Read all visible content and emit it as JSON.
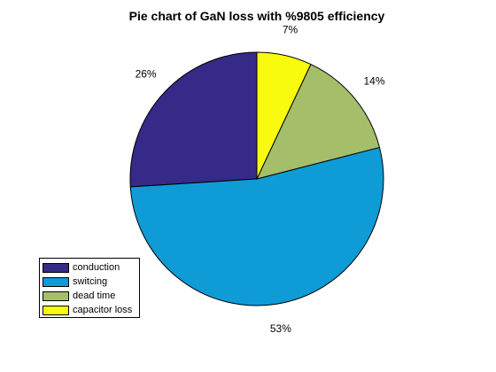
{
  "chart_data": {
    "type": "pie",
    "title": "Pie chart of GaN loss with %9805 efficiency",
    "categories": [
      "conduction",
      "switcing",
      "dead time",
      "capacitor loss"
    ],
    "values": [
      26,
      53,
      14,
      7
    ],
    "labels": [
      "26%",
      "53%",
      "14%",
      "7%"
    ],
    "colors": [
      "#352a87",
      "#0f9bd6",
      "#a5be6a",
      "#f9fb0e"
    ],
    "legend_position": "bottom-left"
  }
}
